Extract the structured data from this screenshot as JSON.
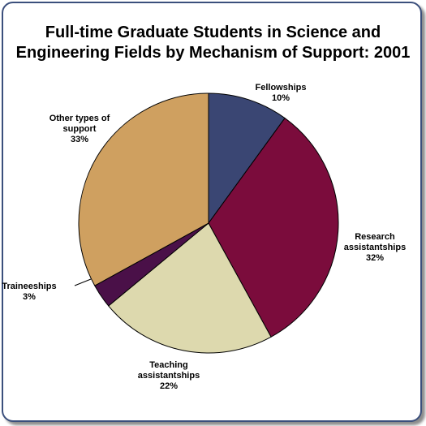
{
  "chart_data": {
    "type": "pie",
    "title_line1": "Full-time Graduate Students in Science and",
    "title_line2": "Engineering Fields by Mechanism of Support: 2001",
    "slices": [
      {
        "label_lines": [
          "Fellowships"
        ],
        "value_text": "10%",
        "value": 10,
        "color": "#3a4673"
      },
      {
        "label_lines": [
          "Research",
          "assistantships"
        ],
        "value_text": "32%",
        "value": 32,
        "color": "#7b0c3c"
      },
      {
        "label_lines": [
          "Teaching",
          "assistantships"
        ],
        "value_text": "22%",
        "value": 22,
        "color": "#ddd9ae"
      },
      {
        "label_lines": [
          "Traineeships"
        ],
        "value_text": "3%",
        "value": 3,
        "color": "#4a1048"
      },
      {
        "label_lines": [
          "Other types of",
          "support"
        ],
        "value_text": "33%",
        "value": 33,
        "color": "#cfa060"
      }
    ]
  }
}
